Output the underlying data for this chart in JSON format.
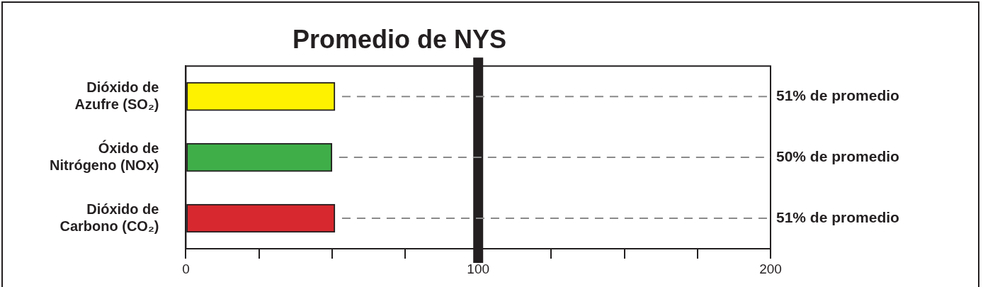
{
  "chart_data": {
    "type": "bar",
    "orientation": "horizontal",
    "title": "Promedio de NYS",
    "categories": [
      "Dióxido de Azufre (SO₂)",
      "Óxido de Nitrógeno (NOx)",
      "Dióxido de Carbono (CO₂)"
    ],
    "values": [
      51,
      50,
      51
    ],
    "colors": [
      "#fff200",
      "#3fae49",
      "#d7282f"
    ],
    "value_labels": [
      "51% de promedio",
      "50% de promedio",
      "51% de promedio"
    ],
    "xlim": [
      0,
      200
    ],
    "xticks": [
      0,
      {
        "value": 25,
        "label": null
      },
      {
        "value": 50,
        "label": null
      },
      {
        "value": 75,
        "label": null
      },
      100,
      {
        "value": 125,
        "label": null
      },
      {
        "value": 150,
        "label": null
      },
      {
        "value": 175,
        "label": null
      },
      200
    ],
    "ref_lines": [
      {
        "axis": "x",
        "value": 100,
        "color": "#231f20"
      }
    ],
    "grid": false,
    "legend": false
  }
}
